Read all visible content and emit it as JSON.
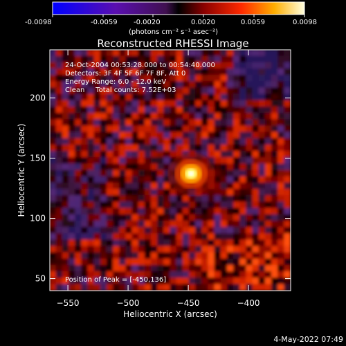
{
  "colorbar": {
    "ticks": [
      "-0.0098",
      "-0.0059",
      "-0.0020",
      "0.0020",
      "0.0059",
      "0.0098"
    ],
    "unit_label": "(photons cm⁻² s⁻¹ asec⁻²)"
  },
  "chart_data": {
    "type": "heatmap",
    "title": "Reconstructed RHESSI Image",
    "xlabel": "Heliocentric X (arcsec)",
    "ylabel": "Heliocentric Y (arcsec)",
    "xlim": [
      -565,
      -365
    ],
    "ylim": [
      40,
      240
    ],
    "x_ticks": [
      -550,
      -500,
      -450,
      -400
    ],
    "y_ticks": [
      50,
      100,
      150,
      200
    ],
    "color_range": [
      -0.0098,
      0.0098
    ],
    "peak": [
      -450,
      136
    ],
    "info_lines": [
      "24-Oct-2004 00:53:28.000 to 00:54:40.000",
      "Detectors: 3F 4F 5F 6F 7F 8F, Att 0",
      "Energy Range: 6.0 - 12.0 keV",
      "Clean     Total counts: 7.52E+03"
    ],
    "peak_label": "Position of Peak = [-450,136]"
  },
  "footer": {
    "date": "4-May-2022 07:49"
  }
}
